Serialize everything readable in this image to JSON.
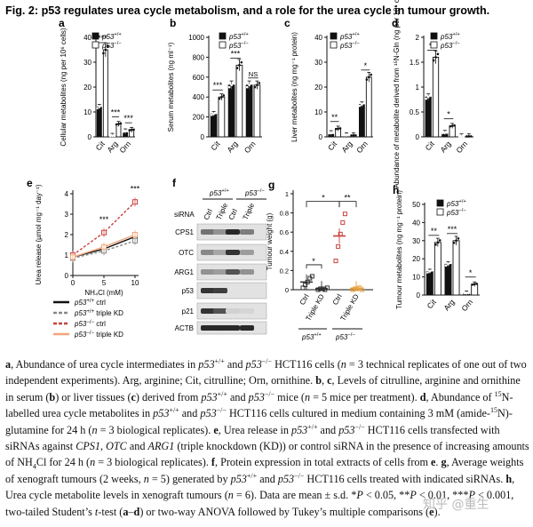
{
  "figure_title": "Fig. 2: p53 regulates urea cycle metabolism, and a role for the urea cycle in tumour growth.",
  "legend": {
    "wt": "p53+/+",
    "ko": "p53−/−"
  },
  "colors": {
    "wt": "#111111",
    "ko": "#ffffff",
    "triple_wt": "#888888",
    "ctrl_ko": "#c8413c",
    "triple_ko": "#f2a57a",
    "orange": "#e8a040"
  },
  "chart_data": [
    {
      "panel": "a",
      "type": "bar",
      "ylabel": "Cellular metabolites (ng per 10⁶ cells)",
      "categories": [
        "Cit",
        "Arg",
        "Orn"
      ],
      "ylim": [
        0,
        40
      ],
      "yticks": [
        0,
        10,
        20,
        30,
        40
      ],
      "series": [
        {
          "name": "p53+/+",
          "values": [
            12,
            0.4,
            2.2
          ]
        },
        {
          "name": "p53−/−",
          "values": [
            35,
            5.2,
            2.8
          ]
        }
      ],
      "sig": [
        "***",
        "***",
        "***"
      ]
    },
    {
      "panel": "b",
      "type": "bar",
      "ylabel": "Serum metabolites (ng ml⁻¹)",
      "categories": [
        "Cit",
        "Arg",
        "Orn"
      ],
      "ylim": [
        0,
        1000
      ],
      "yticks": [
        0,
        200,
        400,
        600,
        800,
        1000
      ],
      "series": [
        {
          "name": "p53+/+",
          "values": [
            230,
            520,
            520
          ]
        },
        {
          "name": "p53−/−",
          "values": [
            400,
            720,
            520
          ]
        }
      ],
      "sig": [
        "***",
        "***",
        "NS"
      ]
    },
    {
      "panel": "c",
      "type": "bar",
      "ylabel": "Liver metabolites (ng mg⁻¹ protein)",
      "categories": [
        "Cit",
        "Arg",
        "Orn"
      ],
      "ylim": [
        0,
        40
      ],
      "yticks": [
        0,
        10,
        20,
        30,
        40
      ],
      "series": [
        {
          "name": "p53+/+",
          "values": [
            1.5,
            0.6,
            13
          ]
        },
        {
          "name": "p53−/−",
          "values": [
            3.3,
            0.6,
            24
          ]
        }
      ],
      "sig": [
        "**",
        "",
        "*"
      ]
    },
    {
      "panel": "d",
      "type": "bar",
      "ylabel": "Abundance of metabolite derived from ¹⁵N-Gln (ng per 10⁶ cells)",
      "categories": [
        "Cit",
        "Arg",
        "Orn"
      ],
      "ylim": [
        0,
        2.0
      ],
      "yticks": [
        0,
        0.5,
        1.0,
        1.5,
        2.0
      ],
      "series": [
        {
          "name": "p53+/+",
          "values": [
            0.8,
            0.08,
            0.01
          ]
        },
        {
          "name": "p53−/−",
          "values": [
            1.6,
            0.22,
            0.01
          ]
        }
      ],
      "sig": [
        "**",
        "*",
        ""
      ]
    },
    {
      "panel": "e",
      "type": "line",
      "ylabel": "Urea release (µmol mg⁻¹ day⁻¹)",
      "xlabel": "NH₄Cl (mM)",
      "x": [
        0,
        5,
        10
      ],
      "ylim": [
        0,
        4
      ],
      "yticks": [
        0,
        1,
        2,
        3,
        4
      ],
      "series": [
        {
          "name": "p53+/+ ctrl",
          "values": [
            0.9,
            1.3,
            1.9
          ]
        },
        {
          "name": "p53+/+ triple KD",
          "values": [
            0.85,
            1.2,
            1.7
          ]
        },
        {
          "name": "p53−/− ctrl",
          "values": [
            1.0,
            2.1,
            3.6
          ]
        },
        {
          "name": "p53−/− triple KD",
          "values": [
            0.9,
            1.4,
            2.0
          ]
        }
      ],
      "sig": [
        "***",
        "***"
      ]
    },
    {
      "panel": "g",
      "type": "scatter",
      "ylabel": "Tumour weight (g)",
      "categories": [
        "Ctrl",
        "Triple KD",
        "Ctrl",
        "Triple KD"
      ],
      "groups": [
        "p53+/+",
        "p53−/−"
      ],
      "ylim": [
        0,
        1.0
      ],
      "yticks": [
        0,
        0.2,
        0.4,
        0.6,
        0.8,
        1.0
      ],
      "means": [
        0.08,
        0.01,
        0.56,
        0.01
      ],
      "sig": [
        "*",
        "*",
        "**"
      ]
    },
    {
      "panel": "h",
      "type": "bar",
      "ylabel": "Tumour metabolites (ng mg⁻¹ protein)",
      "categories": [
        "Cit",
        "Arg",
        "Orn"
      ],
      "ylim": [
        0,
        50
      ],
      "yticks": [
        0,
        10,
        20,
        30,
        40,
        50
      ],
      "series": [
        {
          "name": "p53+/+",
          "values": [
            13,
            17,
            1
          ]
        },
        {
          "name": "p53−/−",
          "values": [
            29,
            30,
            6
          ]
        }
      ],
      "sig": [
        "**",
        "***",
        "*"
      ]
    }
  ],
  "blot": {
    "panel": "f",
    "group_labels": [
      "p53+/+",
      "p53−/−"
    ],
    "sirna_label": "siRNA",
    "lanes": [
      "Ctrl",
      "Triple",
      "Ctrl",
      "Triple"
    ],
    "rows": [
      "CPS1",
      "OTC",
      "ARG1",
      "p53",
      "p21",
      "ACTB"
    ]
  },
  "caption": [
    {
      "t": "a",
      "b": true
    },
    {
      "t": ", Abundance of urea cycle intermediates in "
    },
    {
      "t": "p53",
      "i": true
    },
    {
      "t": "+/+",
      "sup": true
    },
    {
      "t": " and "
    },
    {
      "t": "p53",
      "i": true
    },
    {
      "t": "−/−",
      "sup": true
    },
    {
      "t": " HCT116 cells ("
    },
    {
      "t": "n",
      "i": true
    },
    {
      "t": " = 3 technical replicates of one out of two independent experiments). Arg, arginine; Cit, citrulline; Orn, ornithine. "
    },
    {
      "t": "b",
      "b": true
    },
    {
      "t": ", "
    },
    {
      "t": "c",
      "b": true
    },
    {
      "t": ", Levels of citrulline, arginine and ornithine in serum ("
    },
    {
      "t": "b",
      "b": true
    },
    {
      "t": ") or liver tissues ("
    },
    {
      "t": "c",
      "b": true
    },
    {
      "t": ") derived from "
    },
    {
      "t": "p53",
      "i": true
    },
    {
      "t": "+/+",
      "sup": true
    },
    {
      "t": " and "
    },
    {
      "t": "p53",
      "i": true
    },
    {
      "t": "−/−",
      "sup": true
    },
    {
      "t": " mice ("
    },
    {
      "t": "n",
      "i": true
    },
    {
      "t": " = 5 mice per treatment). "
    },
    {
      "t": "d",
      "b": true
    },
    {
      "t": ", Abundance of "
    },
    {
      "t": "15",
      "sup": true
    },
    {
      "t": "N-labelled urea cycle metabolites in "
    },
    {
      "t": "p53",
      "i": true
    },
    {
      "t": "+/+",
      "sup": true
    },
    {
      "t": " and "
    },
    {
      "t": "p53",
      "i": true
    },
    {
      "t": "−/−",
      "sup": true
    },
    {
      "t": " HCT116 cells cultured in medium containing 3 mM (amide-"
    },
    {
      "t": "15",
      "sup": true
    },
    {
      "t": "N)-glutamine for 24 h ("
    },
    {
      "t": "n",
      "i": true
    },
    {
      "t": " = 3 biological replicates). "
    },
    {
      "t": "e",
      "b": true
    },
    {
      "t": ", Urea release in "
    },
    {
      "t": "p53",
      "i": true
    },
    {
      "t": "+/+",
      "sup": true
    },
    {
      "t": " and "
    },
    {
      "t": "p53",
      "i": true
    },
    {
      "t": "−/−",
      "sup": true
    },
    {
      "t": " HCT116 cells transfected with siRNAs against "
    },
    {
      "t": "CPS1",
      "i": true
    },
    {
      "t": ", "
    },
    {
      "t": "OTC",
      "i": true
    },
    {
      "t": " and "
    },
    {
      "t": "ARG1",
      "i": true
    },
    {
      "t": " (triple knockdown (KD)) or control siRNA in the presence of increasing amounts of NH"
    },
    {
      "t": "4",
      "sub": true
    },
    {
      "t": "Cl for 24 h ("
    },
    {
      "t": "n",
      "i": true
    },
    {
      "t": " = 3 biological replicates). "
    },
    {
      "t": "f",
      "b": true
    },
    {
      "t": ", Protein expression in total extracts of cells from "
    },
    {
      "t": "e",
      "b": true
    },
    {
      "t": ". "
    },
    {
      "t": "g",
      "b": true
    },
    {
      "t": ", Average weights of xenograft tumours (2 weeks, "
    },
    {
      "t": "n",
      "i": true
    },
    {
      "t": " = 5) generated by "
    },
    {
      "t": "p53",
      "i": true
    },
    {
      "t": "+/+",
      "sup": true
    },
    {
      "t": " and "
    },
    {
      "t": "p53",
      "i": true
    },
    {
      "t": "−/−",
      "sup": true
    },
    {
      "t": " HCT116 cells treated with indicated siRNAs. "
    },
    {
      "t": "h",
      "b": true
    },
    {
      "t": ", Urea cycle metabolite levels in xenograft tumours ("
    },
    {
      "t": "n",
      "i": true
    },
    {
      "t": " = 6). Data are mean ± s.d. *"
    },
    {
      "t": "P",
      "i": true
    },
    {
      "t": " < 0.05, **"
    },
    {
      "t": "P",
      "i": true
    },
    {
      "t": " < 0.01, ***"
    },
    {
      "t": "P",
      "i": true
    },
    {
      "t": " < 0.001, two-tailed Student’s "
    },
    {
      "t": "t",
      "i": true
    },
    {
      "t": "-test ("
    },
    {
      "t": "a",
      "b": true
    },
    {
      "t": "–"
    },
    {
      "t": "d",
      "b": true
    },
    {
      "t": ") or two-way ANOVA followed by Tukey’s multiple comparisons ("
    },
    {
      "t": "e",
      "b": true
    },
    {
      "t": ")."
    }
  ],
  "watermark": "知乎 @重生"
}
